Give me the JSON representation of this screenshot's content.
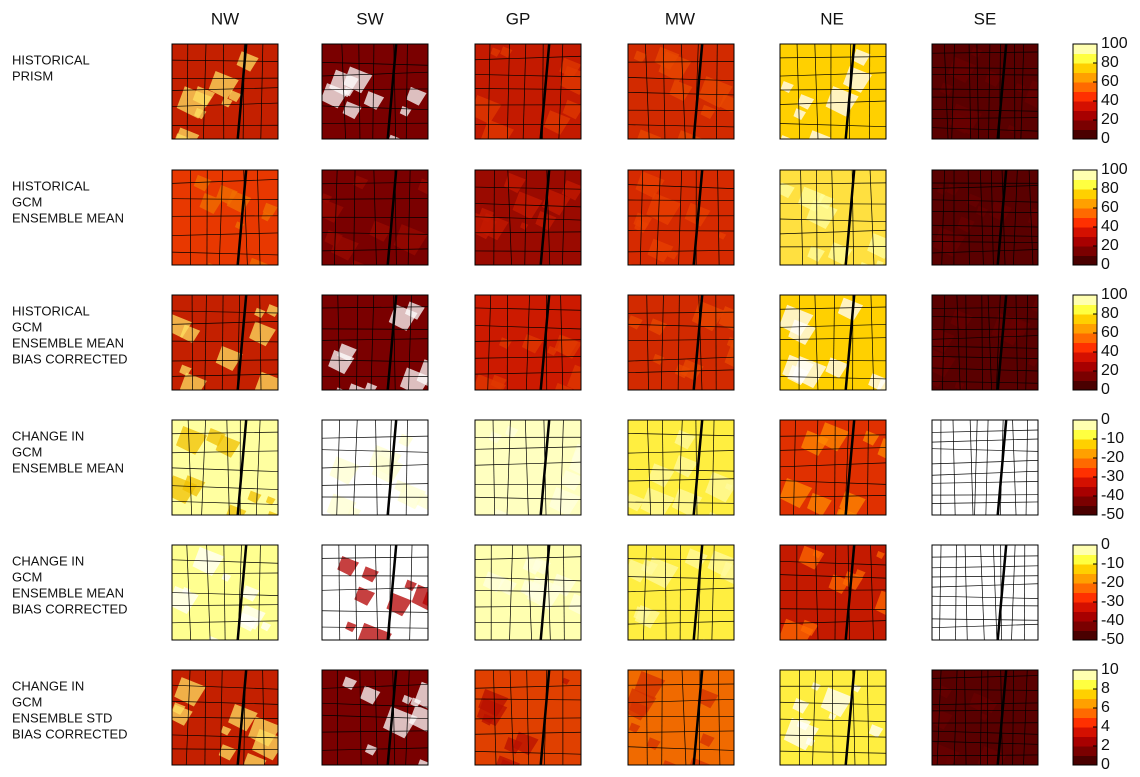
{
  "columns": [
    "NW",
    "SW",
    "GP",
    "MW",
    "NE",
    "SE"
  ],
  "rows": [
    {
      "label": [
        "HISTORICAL",
        "PRISM"
      ],
      "colorbar": {
        "lim": [
          0,
          100
        ],
        "ticks": [
          100,
          80,
          60,
          40,
          20,
          0
        ]
      }
    },
    {
      "label": [
        "HISTORICAL",
        "GCM",
        "ENSEMBLE MEAN"
      ],
      "colorbar": {
        "lim": [
          0,
          100
        ],
        "ticks": [
          100,
          80,
          60,
          40,
          20,
          0
        ]
      }
    },
    {
      "label": [
        "HISTORICAL",
        "GCM",
        "ENSEMBLE MEAN",
        "BIAS CORRECTED"
      ],
      "colorbar": {
        "lim": [
          0,
          100
        ],
        "ticks": [
          100,
          80,
          60,
          40,
          20,
          0
        ]
      }
    },
    {
      "label": [
        "CHANGE IN",
        "GCM",
        "ENSEMBLE MEAN"
      ],
      "colorbar": {
        "lim": [
          -50,
          0
        ],
        "ticks": [
          0,
          -10,
          -20,
          -30,
          -40,
          -50
        ]
      }
    },
    {
      "label": [
        "CHANGE IN",
        "GCM",
        "ENSEMBLE MEAN",
        "BIAS CORRECTED"
      ],
      "colorbar": {
        "lim": [
          -50,
          0
        ],
        "ticks": [
          0,
          -10,
          -20,
          -30,
          -40,
          -50
        ]
      }
    },
    {
      "label": [
        "CHANGE IN",
        "GCM",
        "ENSEMBLE STD",
        "BIAS CORRECTED"
      ],
      "colorbar": {
        "lim": [
          0,
          10
        ],
        "ticks": [
          10,
          8,
          6,
          4,
          2,
          0
        ]
      }
    }
  ]
}
